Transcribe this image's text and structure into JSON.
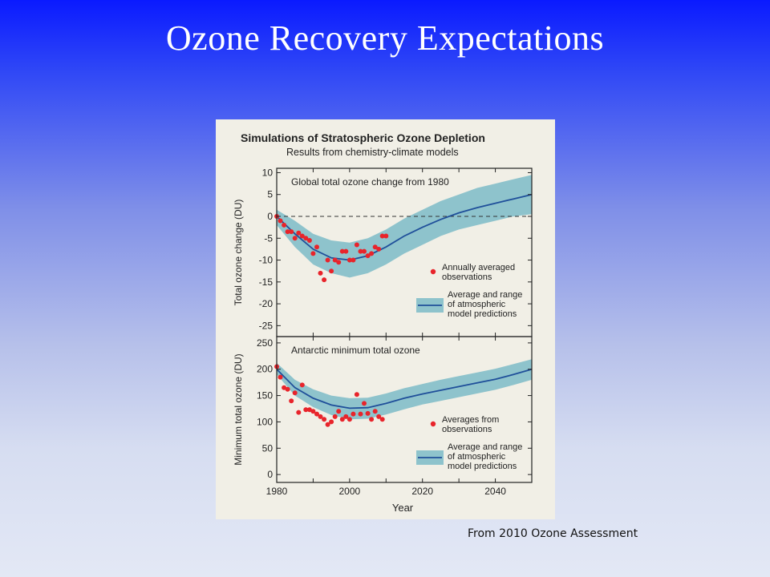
{
  "slide": {
    "title": "Ozone Recovery Expectations",
    "source_note": "From 2010 Ozone Assessment"
  },
  "figure": {
    "title": "Simulations of Stratospheric Ozone Depletion",
    "subtitle": "Results from chemistry-climate models",
    "xlabel": "Year",
    "colors": {
      "background": "#f1efe6",
      "band": "#8ec3cc",
      "model_line": "#1f4f9a",
      "observation": "#e8242b"
    }
  },
  "chart_data": [
    {
      "type": "line",
      "title": "Global total ozone change from 1980",
      "ylabel": "Total ozone change (DU)",
      "xlim": [
        1980,
        2050
      ],
      "ylim": [
        -27.5,
        11
      ],
      "yticks": [
        10,
        5,
        0,
        -5,
        -10,
        -15,
        -20,
        -25
      ],
      "reference_line": 0,
      "model_mean": {
        "x": [
          1980,
          1985,
          1990,
          1995,
          2000,
          2005,
          2010,
          2015,
          2020,
          2025,
          2030,
          2035,
          2040,
          2045,
          2050
        ],
        "y": [
          0,
          -4,
          -7.5,
          -9.5,
          -10,
          -9,
          -7,
          -4.5,
          -2.5,
          -0.7,
          0.8,
          2,
          3,
          4,
          5
        ]
      },
      "model_range": {
        "x": [
          1980,
          1985,
          1990,
          1995,
          2000,
          2005,
          2010,
          2015,
          2020,
          2025,
          2030,
          2035,
          2040,
          2045,
          2050
        ],
        "upper": [
          1.5,
          -1,
          -4,
          -5.5,
          -6,
          -5,
          -3,
          -0.5,
          1.5,
          3.5,
          5,
          6.5,
          7.5,
          8.5,
          9.5
        ],
        "lower": [
          -2,
          -7,
          -11,
          -13,
          -14,
          -13,
          -11,
          -8.5,
          -6.5,
          -4.5,
          -3,
          -2,
          -1,
          0,
          0.5
        ]
      },
      "observations": {
        "x": [
          1980,
          1981,
          1982,
          1983,
          1984,
          1985,
          1986,
          1987,
          1988,
          1989,
          1990,
          1991,
          1992,
          1993,
          1994,
          1995,
          1996,
          1997,
          1998,
          1999,
          2000,
          2001,
          2002,
          2003,
          2004,
          2005,
          2006,
          2007,
          2008,
          2009,
          2010
        ],
        "y": [
          0,
          -1,
          -2,
          -3.5,
          -3.5,
          -5,
          -3.8,
          -4.5,
          -5,
          -5.5,
          -8.5,
          -7,
          -13,
          -14.5,
          -10,
          -12.5,
          -10,
          -10.5,
          -8,
          -8,
          -10,
          -10,
          -6.5,
          -8,
          -8,
          -9,
          -8.5,
          -7,
          -7.5,
          -4.5,
          -4.5
        ]
      },
      "legend": [
        {
          "label": [
            "Annually averaged",
            "observations"
          ]
        },
        {
          "label": [
            "Average and range",
            "of atmospheric",
            "model predictions"
          ]
        }
      ]
    },
    {
      "type": "line",
      "title": "Antarctic minimum total ozone",
      "ylabel": "Minimum total ozone (DU)",
      "xlim": [
        1980,
        2050
      ],
      "ylim": [
        -15,
        262
      ],
      "yticks": [
        250,
        200,
        150,
        100,
        50,
        0
      ],
      "xticks": [
        1980,
        2000,
        2020,
        2040
      ],
      "model_mean": {
        "x": [
          1980,
          1985,
          1990,
          1995,
          2000,
          2005,
          2010,
          2015,
          2020,
          2025,
          2030,
          2035,
          2040,
          2045,
          2050
        ],
        "y": [
          200,
          165,
          145,
          132,
          126,
          127,
          135,
          145,
          153,
          160,
          167,
          174,
          181,
          190,
          200
        ]
      },
      "model_range": {
        "x": [
          1980,
          1985,
          1990,
          1995,
          2000,
          2005,
          2010,
          2015,
          2020,
          2025,
          2030,
          2035,
          2040,
          2045,
          2050
        ],
        "upper": [
          212,
          180,
          162,
          150,
          145,
          146,
          154,
          164,
          172,
          180,
          187,
          194,
          201,
          210,
          219
        ],
        "lower": [
          190,
          150,
          128,
          113,
          105,
          106,
          114,
          124,
          133,
          140,
          147,
          154,
          161,
          170,
          180
        ]
      },
      "observations": {
        "x": [
          1980,
          1981,
          1982,
          1983,
          1984,
          1985,
          1986,
          1987,
          1988,
          1989,
          1990,
          1991,
          1992,
          1993,
          1994,
          1995,
          1996,
          1997,
          1998,
          1999,
          2000,
          2001,
          2002,
          2003,
          2004,
          2005,
          2006,
          2007,
          2008,
          2009
        ],
        "y": [
          205,
          185,
          165,
          162,
          140,
          155,
          118,
          170,
          123,
          123,
          120,
          115,
          110,
          105,
          95,
          100,
          110,
          120,
          105,
          110,
          105,
          115,
          152,
          115,
          135,
          116,
          105,
          120,
          110,
          105
        ]
      },
      "legend": [
        {
          "label": [
            "Averages from",
            "observations"
          ]
        },
        {
          "label": [
            "Average and range",
            "of atmospheric",
            "model predictions"
          ]
        }
      ]
    }
  ]
}
